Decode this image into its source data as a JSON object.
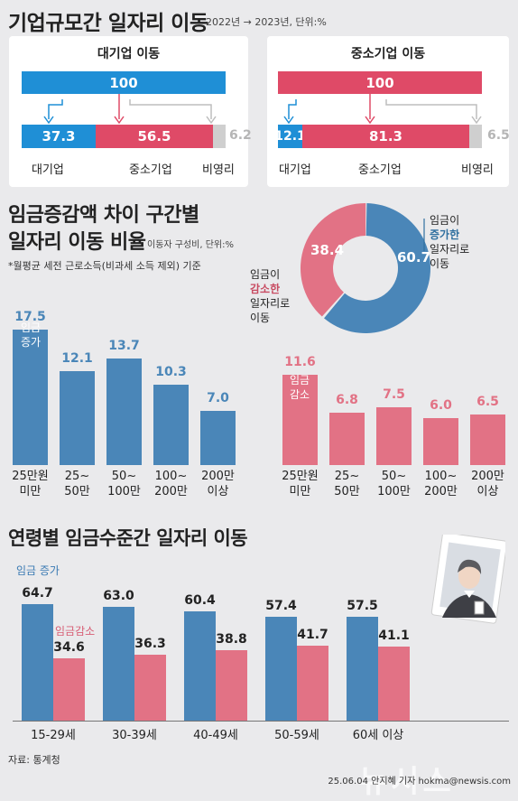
{
  "colors": {
    "blue": "#4a86b8",
    "pink": "#e27285",
    "deep_blue": "#1f8fd6",
    "deep_pink": "#df4a67",
    "gray": "#cfcfcf",
    "donut_blue": "#4a86b8",
    "donut_pink": "#e27285"
  },
  "header": {
    "title": "기업규모간 일자리 이동",
    "period": "2022년 → 2023년, 단위:%"
  },
  "flow": [
    {
      "title": "대기업 이동",
      "total": "100",
      "segments": [
        {
          "label": "대기업",
          "value": 37.3
        },
        {
          "label": "중소기업",
          "value": 56.5
        },
        {
          "label": "비영리",
          "value": 6.2
        }
      ]
    },
    {
      "title": "중소기업 이동",
      "total": "100",
      "segments": [
        {
          "label": "대기업",
          "value": 12.1
        },
        {
          "label": "중소기업",
          "value": 81.3
        },
        {
          "label": "비영리",
          "value": 6.5
        }
      ]
    }
  ],
  "wage_section": {
    "title_line1": "임금증감액 차이 구간별",
    "title_line2": "일자리 이동 비율",
    "unit": "이동자 구성비, 단위:%",
    "note": "*월평균 세전 근로소득(비과세 소득 제외) 기준",
    "increase_tag_1": "임금",
    "increase_tag_2": "증가",
    "decrease_tag_1": "임금",
    "decrease_tag_2": "감소",
    "donut_left_1": "임금이",
    "donut_left_2": "감소한",
    "donut_left_3": "일자리로",
    "donut_left_4": "이동",
    "donut_right_1": "임금이",
    "donut_right_2": "증가한",
    "donut_right_3": "일자리로",
    "donut_right_4": "이동"
  },
  "age_section": {
    "title": "연령별 임금수준간 일자리 이동",
    "legend_increase": "임금 증가",
    "legend_decrease": "임금감소"
  },
  "chart_data": [
    {
      "type": "pie",
      "labels": [
        "임금이 증가한 일자리로 이동",
        "임금이 감소한 일자리로 이동"
      ],
      "values": [
        60.7,
        38.4
      ]
    },
    {
      "type": "bar",
      "series": [
        {
          "name": "임금 증가",
          "values": [
            17.5,
            12.1,
            13.7,
            10.3,
            7.0
          ]
        }
      ],
      "categories": [
        [
          "25만원",
          "미만"
        ],
        [
          "25~",
          "50만"
        ],
        [
          "50~",
          "100만"
        ],
        [
          "100~",
          "200만"
        ],
        [
          "200만",
          "이상"
        ]
      ]
    },
    {
      "type": "bar",
      "series": [
        {
          "name": "임금 감소",
          "values": [
            11.6,
            6.8,
            7.5,
            6.0,
            6.5
          ]
        }
      ],
      "categories": [
        [
          "25만원",
          "미만"
        ],
        [
          "25~",
          "50만"
        ],
        [
          "50~",
          "100만"
        ],
        [
          "100~",
          "200만"
        ],
        [
          "200만",
          "이상"
        ]
      ]
    },
    {
      "type": "bar",
      "categories": [
        "15-29세",
        "30-39세",
        "40-49세",
        "50-59세",
        "60세 이상"
      ],
      "series": [
        {
          "name": "임금 증가",
          "values": [
            64.7,
            63.0,
            60.4,
            57.4,
            57.5
          ]
        },
        {
          "name": "임금감소",
          "values": [
            34.6,
            36.3,
            38.8,
            41.7,
            41.1
          ]
        }
      ]
    }
  ],
  "footer": {
    "source": "자료: 통계청",
    "credit": "25.06.04 안지혜 기자 hokma@newsis.com",
    "watermark": "뉴시스"
  }
}
